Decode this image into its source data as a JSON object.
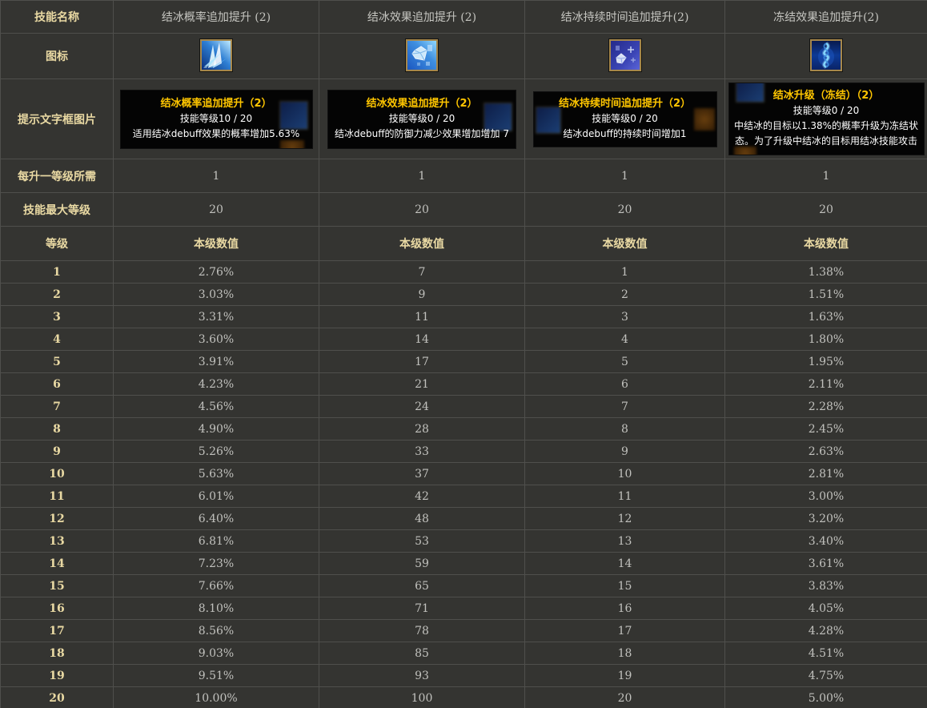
{
  "colors": {
    "background": "#343431",
    "gridline": "#4f4f4c",
    "label_gold": "#e9d9a3",
    "value_gray": "#c1c1bd",
    "tooltip_title_gold": "#ffc600",
    "tooltip_text": "#ffffff",
    "tooltip_background": "#040404",
    "icon_border": "#a5874c"
  },
  "table": {
    "row_labels": {
      "skill_name": "技能名称",
      "icon": "图标",
      "tooltip": "提示文字框图片",
      "per_level_cost": "每升一等级所需",
      "max_level": "技能最大等级",
      "level": "等级"
    },
    "value_header": "本级数值",
    "levels": [
      "1",
      "2",
      "3",
      "4",
      "5",
      "6",
      "7",
      "8",
      "9",
      "10",
      "11",
      "12",
      "13",
      "14",
      "15",
      "16",
      "17",
      "18",
      "19",
      "20"
    ],
    "columns": [
      {
        "name": "结冰概率追加提升 (2)",
        "icon": "ice-shards-icon",
        "tooltip": {
          "title": "结冰概率追加提升（2）",
          "level": "技能等级10 / 20",
          "desc": "适用结冰debuff效果的概率增加5.63%"
        },
        "per_level_cost": "1",
        "max_level": "20",
        "values": [
          "2.76%",
          "3.03%",
          "3.31%",
          "3.60%",
          "3.91%",
          "4.23%",
          "4.56%",
          "4.90%",
          "5.26%",
          "5.63%",
          "6.01%",
          "6.40%",
          "6.81%",
          "7.23%",
          "7.66%",
          "8.10%",
          "8.56%",
          "9.03%",
          "9.51%",
          "10.00%"
        ]
      },
      {
        "name": "结冰效果追加提升 (2)",
        "icon": "ice-crystal-icon",
        "tooltip": {
          "title": "结冰效果追加提升（2）",
          "level": "技能等级0 / 20",
          "desc": "结冰debuff的防御力减少效果增加增加 7"
        },
        "per_level_cost": "1",
        "max_level": "20",
        "values": [
          "7",
          "9",
          "11",
          "14",
          "17",
          "21",
          "24",
          "28",
          "33",
          "37",
          "42",
          "48",
          "53",
          "59",
          "65",
          "71",
          "78",
          "85",
          "93",
          "100"
        ]
      },
      {
        "name": "结冰持续时间追加提升(2)",
        "icon": "ice-gem-icon",
        "tooltip": {
          "title": "结冰持续时间追加提升（2）",
          "level": "技能等级0 / 20",
          "desc": "结冰debuff的持续时间增加1"
        },
        "per_level_cost": "1",
        "max_level": "20",
        "values": [
          "1",
          "2",
          "3",
          "4",
          "5",
          "6",
          "7",
          "8",
          "9",
          "10",
          "11",
          "12",
          "13",
          "14",
          "15",
          "16",
          "17",
          "18",
          "19",
          "20"
        ]
      },
      {
        "name": "冻结效果追加提升(2)",
        "icon": "freeze-ribbon-icon",
        "tooltip": {
          "title": "结冰升级（冻结）（2）",
          "level": "技能等级0 / 20",
          "desc": "中结冰的目标以1.38%的概率升级为冻结状态。为了升级中结冰的目标用结冰技能攻击"
        },
        "per_level_cost": "1",
        "max_level": "20",
        "values": [
          "1.38%",
          "1.51%",
          "1.63%",
          "1.80%",
          "1.95%",
          "2.11%",
          "2.28%",
          "2.45%",
          "2.63%",
          "2.81%",
          "3.00%",
          "3.20%",
          "3.40%",
          "3.61%",
          "3.83%",
          "4.05%",
          "4.28%",
          "4.51%",
          "4.75%",
          "5.00%"
        ]
      }
    ]
  }
}
